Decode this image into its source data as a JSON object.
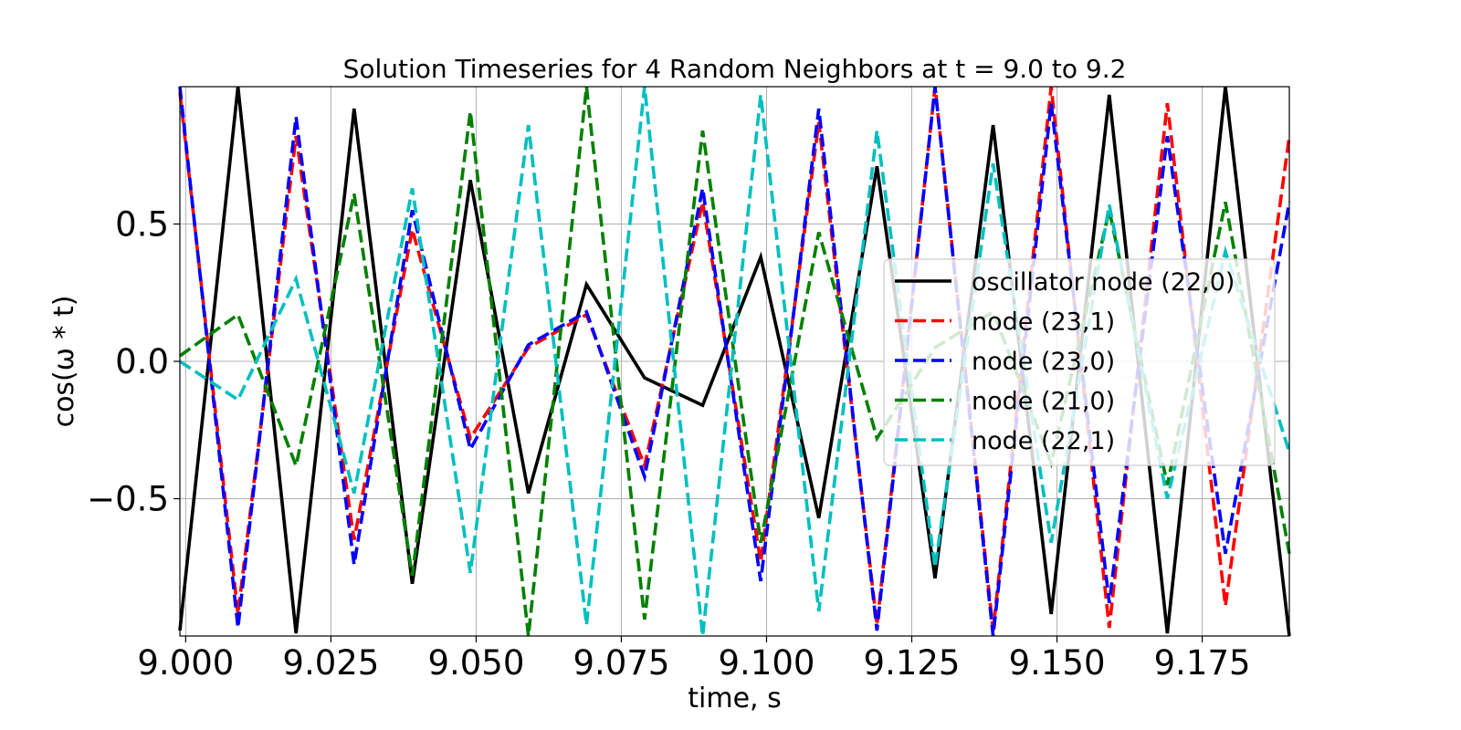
{
  "chart_data": {
    "type": "line",
    "title": "Solution Timeseries for 4 Random Neighbors at t = 9.0 to 9.2",
    "xlabel": "time, s",
    "ylabel": "cos(ω * t)",
    "xlim": [
      8.999,
      9.19
    ],
    "ylim": [
      -1.0,
      1.0
    ],
    "xticks": [
      9.0,
      9.025,
      9.05,
      9.075,
      9.1,
      9.125,
      9.15,
      9.175
    ],
    "xtick_labels": [
      "9.000",
      "9.025",
      "9.050",
      "9.075",
      "9.100",
      "9.125",
      "9.150",
      "9.175"
    ],
    "yticks": [
      -0.5,
      0.0,
      0.5
    ],
    "ytick_labels": [
      "−0.5",
      "0.0",
      "0.5"
    ],
    "grid": true,
    "legend_position": "center-right",
    "x": [
      8.999,
      9.009,
      9.019,
      9.029,
      9.039,
      9.049,
      9.059,
      9.069,
      9.079,
      9.089,
      9.099,
      9.109,
      9.119,
      9.129,
      9.139,
      9.149,
      9.159,
      9.169,
      9.179,
      9.19
    ],
    "series": [
      {
        "name": "oscillator node (22,0)",
        "color": "#000000",
        "dashed": false,
        "values": [
          -0.98,
          1.0,
          -0.99,
          0.92,
          -0.81,
          0.66,
          -0.48,
          0.28,
          -0.06,
          -0.16,
          0.38,
          -0.57,
          0.71,
          -0.79,
          0.86,
          -0.92,
          0.97,
          -0.99,
          1.0,
          -1.0
        ]
      },
      {
        "name": "node (23,1)",
        "color": "#ff0000",
        "dashed": true,
        "values": [
          0.98,
          -0.92,
          0.82,
          -0.65,
          0.48,
          -0.28,
          0.05,
          0.17,
          -0.38,
          0.58,
          -0.73,
          0.87,
          -0.96,
          1.0,
          -0.98,
          1.0,
          -0.97,
          0.94,
          -0.89,
          0.82
        ]
      },
      {
        "name": "node (23,0)",
        "color": "#0000ff",
        "dashed": true,
        "values": [
          1.0,
          -0.97,
          0.89,
          -0.74,
          0.55,
          -0.32,
          0.06,
          0.18,
          -0.42,
          0.63,
          -0.8,
          0.92,
          -0.98,
          1.0,
          -1.0,
          0.94,
          -0.88,
          0.82,
          -0.7,
          0.58
        ]
      },
      {
        "name": "node (21,0)",
        "color": "#008000",
        "dashed": true,
        "values": [
          0.02,
          0.17,
          -0.38,
          0.61,
          -0.78,
          0.91,
          -1.0,
          1.0,
          -0.94,
          0.84,
          -0.66,
          0.47,
          -0.28,
          0.05,
          0.18,
          -0.37,
          0.55,
          -0.45,
          0.58,
          -0.7
        ]
      },
      {
        "name": "node (22,1)",
        "color": "#00bfbf",
        "dashed": true,
        "values": [
          0.0,
          -0.14,
          0.3,
          -0.48,
          0.63,
          -0.77,
          0.86,
          -0.96,
          1.0,
          -1.0,
          0.97,
          -0.91,
          0.84,
          -0.75,
          0.72,
          -0.66,
          0.57,
          -0.5,
          0.4,
          -0.33
        ]
      }
    ]
  }
}
